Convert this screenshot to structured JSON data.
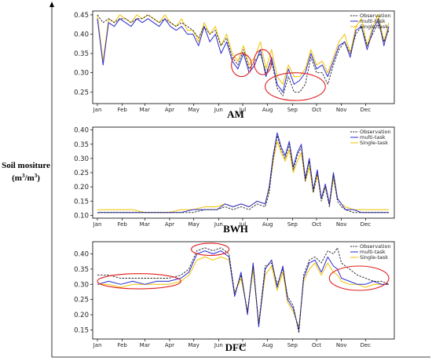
{
  "figure": {
    "ylabel_line1": "Soil mositure",
    "ylabel_unit_prefix": "(m",
    "ylabel_unit_sup1": "3",
    "ylabel_unit_mid": "/m",
    "ylabel_unit_sup2": "3",
    "ylabel_unit_suffix": ")"
  },
  "colors": {
    "observation": "#222222",
    "multi": "#2b2bd6",
    "single": "#f2c200",
    "ellipse": "#e02020"
  },
  "chart_data": [
    {
      "type": "line",
      "title": "AM",
      "months": [
        "Jan",
        "Feb",
        "Mar",
        "Apr",
        "May",
        "Jun",
        "Jul",
        "Aug",
        "Sep",
        "Oct",
        "Nov",
        "Dec"
      ],
      "ylim": [
        0.22,
        0.46
      ],
      "yticks": [
        "0.25",
        "0.30",
        "0.35",
        "0.40",
        "0.45"
      ],
      "ytick_values": [
        0.25,
        0.3,
        0.35,
        0.4,
        0.45
      ],
      "legend": [
        "Observation",
        "multi-task",
        "Single-task"
      ],
      "legend_position": "top-right",
      "highlights": [
        {
          "day_start": 168,
          "day_end": 193,
          "y_low": 0.29,
          "y_high": 0.35
        },
        {
          "day_start": 196,
          "day_end": 218,
          "y_low": 0.295,
          "y_high": 0.36
        },
        {
          "day_start": 210,
          "day_end": 285,
          "y_low": 0.228,
          "y_high": 0.3
        }
      ],
      "series": [
        {
          "name": "Observation",
          "style": "dashed",
          "x": [
            1,
            8,
            15,
            22,
            29,
            36,
            43,
            50,
            57,
            64,
            71,
            78,
            85,
            92,
            99,
            106,
            113,
            120,
            127,
            134,
            141,
            148,
            155,
            162,
            169,
            176,
            183,
            190,
            197,
            204,
            211,
            218,
            225,
            232,
            239,
            246,
            253,
            260,
            267,
            274,
            281,
            288,
            295,
            302,
            309,
            316,
            323,
            330,
            337,
            344,
            351,
            358,
            364
          ],
          "y": [
            0.45,
            0.43,
            0.44,
            0.43,
            0.44,
            0.44,
            0.43,
            0.44,
            0.44,
            0.45,
            0.44,
            0.43,
            0.44,
            0.43,
            0.42,
            0.43,
            0.42,
            0.41,
            0.39,
            0.42,
            0.4,
            0.41,
            0.37,
            0.39,
            0.34,
            0.32,
            0.36,
            0.31,
            0.33,
            0.35,
            0.3,
            0.33,
            0.26,
            0.24,
            0.29,
            0.25,
            0.25,
            0.27,
            0.34,
            0.3,
            0.3,
            0.27,
            0.32,
            0.36,
            0.38,
            0.35,
            0.4,
            0.42,
            0.37,
            0.4,
            0.43,
            0.38,
            0.41
          ]
        },
        {
          "name": "multi-task",
          "style": "solid",
          "x": [
            1,
            8,
            15,
            22,
            29,
            36,
            43,
            50,
            57,
            64,
            71,
            78,
            85,
            92,
            99,
            106,
            113,
            120,
            127,
            134,
            141,
            148,
            155,
            162,
            169,
            176,
            183,
            190,
            197,
            204,
            211,
            218,
            225,
            232,
            239,
            246,
            253,
            260,
            267,
            274,
            281,
            288,
            295,
            302,
            309,
            316,
            323,
            330,
            337,
            344,
            351,
            358,
            364
          ],
          "y": [
            0.44,
            0.32,
            0.43,
            0.42,
            0.44,
            0.43,
            0.42,
            0.44,
            0.43,
            0.44,
            0.43,
            0.42,
            0.44,
            0.42,
            0.41,
            0.42,
            0.4,
            0.4,
            0.37,
            0.42,
            0.38,
            0.4,
            0.35,
            0.38,
            0.33,
            0.31,
            0.35,
            0.3,
            0.32,
            0.36,
            0.29,
            0.34,
            0.27,
            0.25,
            0.31,
            0.27,
            0.28,
            0.3,
            0.35,
            0.31,
            0.32,
            0.29,
            0.33,
            0.37,
            0.38,
            0.34,
            0.41,
            0.42,
            0.36,
            0.41,
            0.44,
            0.37,
            0.42
          ]
        },
        {
          "name": "Single-task",
          "style": "solid",
          "x": [
            1,
            8,
            15,
            22,
            29,
            36,
            43,
            50,
            57,
            64,
            71,
            78,
            85,
            92,
            99,
            106,
            113,
            120,
            127,
            134,
            141,
            148,
            155,
            162,
            169,
            176,
            183,
            190,
            197,
            204,
            211,
            218,
            225,
            232,
            239,
            246,
            253,
            260,
            267,
            274,
            281,
            288,
            295,
            302,
            309,
            316,
            323,
            330,
            337,
            344,
            351,
            358,
            364
          ],
          "y": [
            0.45,
            0.33,
            0.44,
            0.43,
            0.45,
            0.44,
            0.43,
            0.45,
            0.44,
            0.45,
            0.44,
            0.43,
            0.45,
            0.43,
            0.42,
            0.44,
            0.41,
            0.41,
            0.38,
            0.43,
            0.4,
            0.42,
            0.37,
            0.4,
            0.35,
            0.33,
            0.37,
            0.32,
            0.34,
            0.38,
            0.31,
            0.36,
            0.29,
            0.27,
            0.32,
            0.29,
            0.29,
            0.31,
            0.36,
            0.32,
            0.33,
            0.3,
            0.34,
            0.38,
            0.4,
            0.35,
            0.42,
            0.44,
            0.37,
            0.42,
            0.45,
            0.38,
            0.43
          ]
        }
      ]
    },
    {
      "type": "line",
      "title": "BWH",
      "months": [
        "Jan",
        "Feb",
        "Mar",
        "Apr",
        "May",
        "Jun",
        "Jul",
        "Aug",
        "Sep",
        "Oct",
        "Nov",
        "Dec"
      ],
      "ylim": [
        0.09,
        0.41
      ],
      "yticks": [
        "0.10",
        "0.15",
        "0.20",
        "0.25",
        "0.30",
        "0.35",
        "0.40"
      ],
      "ytick_values": [
        0.1,
        0.15,
        0.2,
        0.25,
        0.3,
        0.35,
        0.4
      ],
      "legend": [
        "Observation",
        "multi-task",
        "Single-task"
      ],
      "legend_position": "top-right",
      "highlights": [],
      "series": [
        {
          "name": "Observation",
          "style": "dashed",
          "x": [
            1,
            15,
            30,
            45,
            60,
            75,
            90,
            105,
            120,
            135,
            150,
            160,
            170,
            180,
            190,
            200,
            210,
            215,
            220,
            225,
            230,
            235,
            240,
            245,
            250,
            255,
            260,
            265,
            270,
            275,
            280,
            285,
            290,
            295,
            300,
            305,
            310,
            320,
            330,
            345,
            364
          ],
          "y": [
            0.11,
            0.11,
            0.11,
            0.11,
            0.11,
            0.11,
            0.11,
            0.11,
            0.11,
            0.12,
            0.12,
            0.13,
            0.12,
            0.13,
            0.12,
            0.14,
            0.13,
            0.18,
            0.3,
            0.38,
            0.33,
            0.3,
            0.35,
            0.26,
            0.31,
            0.34,
            0.22,
            0.29,
            0.18,
            0.25,
            0.15,
            0.2,
            0.13,
            0.24,
            0.15,
            0.13,
            0.12,
            0.11,
            0.11,
            0.11,
            0.11
          ]
        },
        {
          "name": "multi-task",
          "style": "solid",
          "x": [
            1,
            15,
            30,
            45,
            60,
            75,
            90,
            105,
            120,
            135,
            150,
            160,
            170,
            180,
            190,
            200,
            210,
            215,
            220,
            225,
            230,
            235,
            240,
            245,
            250,
            255,
            260,
            265,
            270,
            275,
            280,
            285,
            290,
            295,
            300,
            305,
            310,
            320,
            330,
            345,
            364
          ],
          "y": [
            0.11,
            0.11,
            0.11,
            0.11,
            0.11,
            0.11,
            0.11,
            0.11,
            0.12,
            0.12,
            0.12,
            0.14,
            0.13,
            0.14,
            0.13,
            0.15,
            0.14,
            0.2,
            0.31,
            0.39,
            0.34,
            0.31,
            0.36,
            0.27,
            0.32,
            0.35,
            0.23,
            0.3,
            0.19,
            0.26,
            0.16,
            0.21,
            0.14,
            0.25,
            0.16,
            0.14,
            0.12,
            0.12,
            0.11,
            0.11,
            0.11
          ]
        },
        {
          "name": "Single-task",
          "style": "solid",
          "x": [
            1,
            15,
            30,
            45,
            60,
            75,
            90,
            105,
            120,
            135,
            150,
            160,
            170,
            180,
            190,
            200,
            210,
            215,
            220,
            225,
            230,
            235,
            240,
            245,
            250,
            255,
            260,
            265,
            270,
            275,
            280,
            285,
            290,
            295,
            300,
            305,
            310,
            320,
            330,
            345,
            364
          ],
          "y": [
            0.12,
            0.12,
            0.12,
            0.12,
            0.11,
            0.11,
            0.11,
            0.12,
            0.12,
            0.13,
            0.13,
            0.14,
            0.13,
            0.14,
            0.13,
            0.15,
            0.14,
            0.19,
            0.29,
            0.36,
            0.32,
            0.29,
            0.33,
            0.25,
            0.29,
            0.32,
            0.22,
            0.27,
            0.18,
            0.24,
            0.16,
            0.2,
            0.14,
            0.23,
            0.16,
            0.14,
            0.13,
            0.12,
            0.12,
            0.12,
            0.12
          ]
        }
      ]
    },
    {
      "type": "line",
      "title": "DFC",
      "months": [
        "Jan",
        "Feb",
        "Mar",
        "Apr",
        "May",
        "Jun",
        "Jul",
        "Aug",
        "Sep",
        "Oct",
        "Nov",
        "Dec"
      ],
      "ylim": [
        0.12,
        0.44
      ],
      "yticks": [
        "0.15",
        "0.20",
        "0.25",
        "0.30",
        "0.35",
        "0.40"
      ],
      "ytick_values": [
        0.15,
        0.2,
        0.25,
        0.3,
        0.35,
        0.4
      ],
      "legend": [
        "Observation",
        "multi-task",
        "Single-task"
      ],
      "legend_position": "top-right",
      "highlights": [
        {
          "day_start": 1,
          "day_end": 105,
          "y_low": 0.285,
          "y_high": 0.335
        },
        {
          "day_start": 118,
          "day_end": 165,
          "y_low": 0.395,
          "y_high": 0.435
        },
        {
          "day_start": 290,
          "day_end": 364,
          "y_low": 0.28,
          "y_high": 0.36
        }
      ],
      "series": [
        {
          "name": "Observation",
          "style": "dashed",
          "x": [
            1,
            15,
            30,
            45,
            60,
            75,
            90,
            105,
            115,
            125,
            135,
            145,
            155,
            165,
            172,
            180,
            188,
            195,
            202,
            210,
            218,
            225,
            232,
            238,
            245,
            252,
            258,
            265,
            272,
            280,
            288,
            295,
            300,
            305,
            315,
            325,
            335,
            345,
            355,
            364
          ],
          "y": [
            0.33,
            0.33,
            0.32,
            0.32,
            0.32,
            0.32,
            0.32,
            0.33,
            0.35,
            0.41,
            0.42,
            0.41,
            0.42,
            0.4,
            0.27,
            0.33,
            0.21,
            0.36,
            0.17,
            0.36,
            0.37,
            0.3,
            0.35,
            0.26,
            0.23,
            0.14,
            0.33,
            0.38,
            0.39,
            0.37,
            0.41,
            0.4,
            0.42,
            0.37,
            0.35,
            0.33,
            0.32,
            0.31,
            0.31,
            0.3
          ]
        },
        {
          "name": "multi-task",
          "style": "solid",
          "x": [
            1,
            15,
            30,
            45,
            60,
            75,
            90,
            105,
            115,
            125,
            135,
            145,
            155,
            165,
            172,
            180,
            188,
            195,
            202,
            210,
            218,
            225,
            232,
            238,
            245,
            252,
            258,
            265,
            272,
            280,
            288,
            295,
            300,
            305,
            315,
            325,
            335,
            345,
            355,
            364
          ],
          "y": [
            0.3,
            0.31,
            0.3,
            0.31,
            0.3,
            0.31,
            0.31,
            0.32,
            0.34,
            0.4,
            0.41,
            0.4,
            0.41,
            0.39,
            0.26,
            0.34,
            0.2,
            0.37,
            0.16,
            0.35,
            0.38,
            0.29,
            0.36,
            0.25,
            0.22,
            0.15,
            0.32,
            0.37,
            0.38,
            0.34,
            0.39,
            0.36,
            0.35,
            0.32,
            0.31,
            0.3,
            0.3,
            0.31,
            0.3,
            0.3
          ]
        },
        {
          "name": "Single-task",
          "style": "solid",
          "x": [
            1,
            15,
            30,
            45,
            60,
            75,
            90,
            105,
            115,
            125,
            135,
            145,
            155,
            165,
            172,
            180,
            188,
            195,
            202,
            210,
            218,
            225,
            232,
            238,
            245,
            252,
            258,
            265,
            272,
            280,
            288,
            295,
            300,
            305,
            315,
            325,
            335,
            345,
            355,
            364
          ],
          "y": [
            0.3,
            0.3,
            0.29,
            0.3,
            0.3,
            0.3,
            0.3,
            0.31,
            0.33,
            0.38,
            0.39,
            0.38,
            0.39,
            0.38,
            0.27,
            0.32,
            0.21,
            0.35,
            0.17,
            0.33,
            0.36,
            0.28,
            0.34,
            0.24,
            0.21,
            0.16,
            0.31,
            0.35,
            0.37,
            0.33,
            0.37,
            0.34,
            0.33,
            0.31,
            0.3,
            0.3,
            0.29,
            0.3,
            0.3,
            0.3
          ]
        }
      ]
    }
  ]
}
